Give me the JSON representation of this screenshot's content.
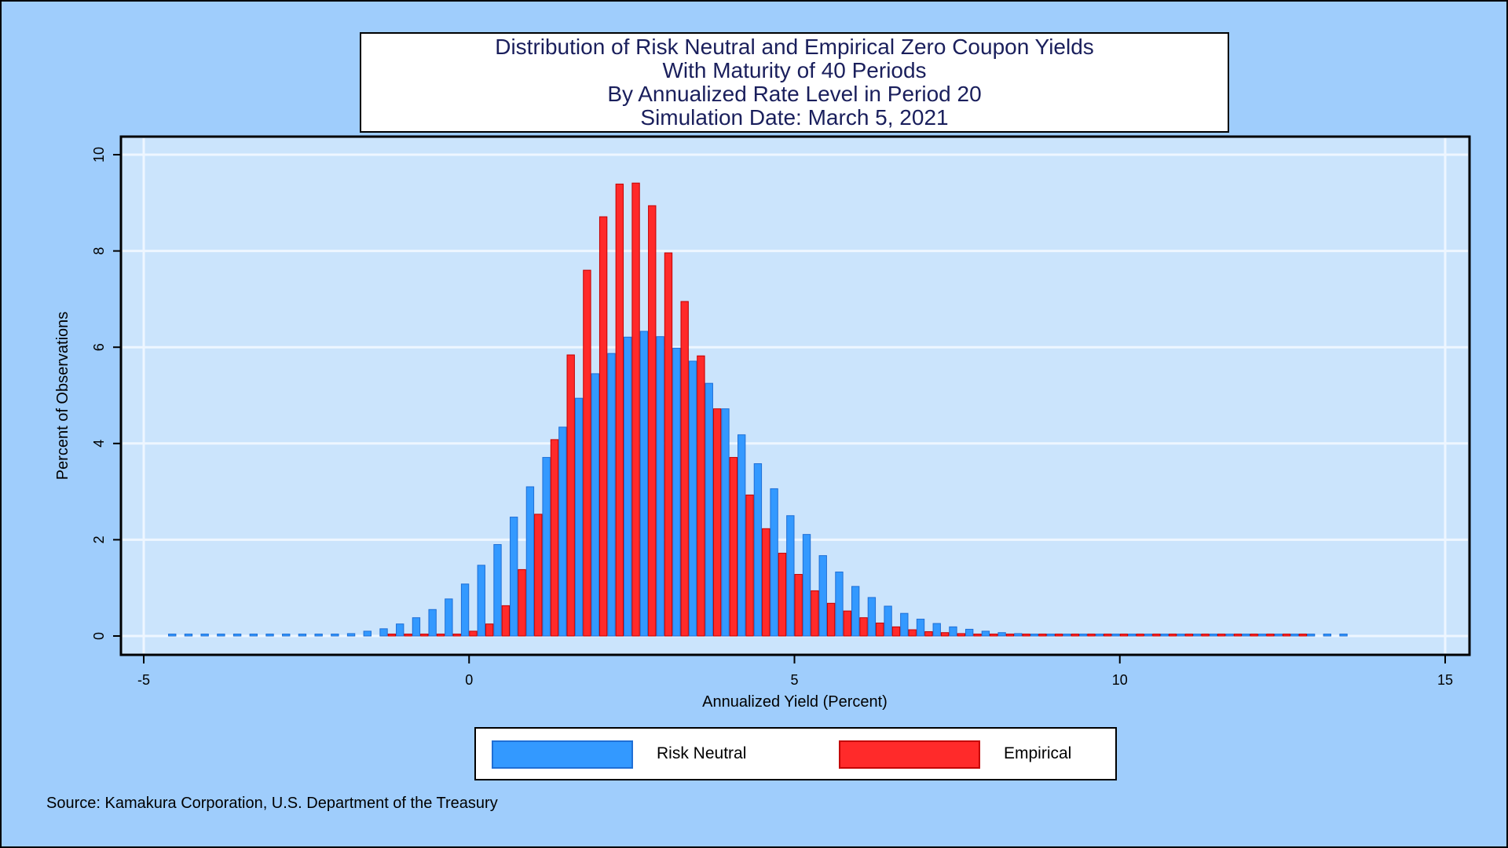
{
  "title_lines": [
    "Distribution of Risk Neutral and Empirical Zero Coupon Yields",
    "With Maturity of 40 Periods",
    "By Annualized Rate Level in Period 20",
    "Simulation Date: March 5, 2021"
  ],
  "source": "Source: Kamakura Corporation, U.S. Department of the Treasury",
  "colors": {
    "background": "#9fcdfc",
    "plot_area": "#cbe4fc",
    "grid": "#eef6ff",
    "risk_neutral_fill": "#3399ff",
    "risk_neutral_edge": "#1f6fd6",
    "empirical_fill": "#ff2a2a",
    "empirical_edge": "#c40000",
    "title_text": "#1a1f5c"
  },
  "legend": [
    {
      "label": "Risk Neutral",
      "color_key": "risk_neutral"
    },
    {
      "label": "Empirical",
      "color_key": "empirical"
    }
  ],
  "chart_data": {
    "type": "bar",
    "title": "Distribution of Risk Neutral and Empirical Zero Coupon Yields With Maturity of 40 Periods By Annualized Rate Level in Period 20 Simulation Date: March 5, 2021",
    "xlabel": "Annualized Yield (Percent)",
    "ylabel": "Percent of Observations",
    "xlim": [
      -5,
      15
    ],
    "ylim": [
      0,
      10
    ],
    "xticks": [
      -5,
      0,
      5,
      10,
      15
    ],
    "yticks": [
      0,
      2,
      4,
      6,
      8,
      10
    ],
    "grid": true,
    "legend_position": "bottom",
    "bin_width": 0.25,
    "series": [
      {
        "name": "Risk Neutral",
        "points": [
          [
            -4.5,
            0.02
          ],
          [
            -4.25,
            0.02
          ],
          [
            -4.0,
            0.02
          ],
          [
            -3.75,
            0.02
          ],
          [
            -3.5,
            0.02
          ],
          [
            -3.25,
            0.02
          ],
          [
            -3.0,
            0.02
          ],
          [
            -2.75,
            0.02
          ],
          [
            -2.5,
            0.02
          ],
          [
            -2.25,
            0.02
          ],
          [
            -2.0,
            0.03
          ],
          [
            -1.75,
            0.05
          ],
          [
            -1.5,
            0.1
          ],
          [
            -1.25,
            0.15
          ],
          [
            -1.0,
            0.25
          ],
          [
            -0.75,
            0.38
          ],
          [
            -0.5,
            0.55
          ],
          [
            -0.25,
            0.77
          ],
          [
            0.0,
            1.08
          ],
          [
            0.25,
            1.47
          ],
          [
            0.5,
            1.9
          ],
          [
            0.75,
            2.47
          ],
          [
            1.0,
            3.1
          ],
          [
            1.25,
            3.71
          ],
          [
            1.5,
            4.34
          ],
          [
            1.75,
            4.94
          ],
          [
            2.0,
            5.45
          ],
          [
            2.25,
            5.87
          ],
          [
            2.5,
            6.21
          ],
          [
            2.75,
            6.33
          ],
          [
            3.0,
            6.22
          ],
          [
            3.25,
            5.98
          ],
          [
            3.5,
            5.71
          ],
          [
            3.75,
            5.25
          ],
          [
            4.0,
            4.72
          ],
          [
            4.25,
            4.18
          ],
          [
            4.5,
            3.58
          ],
          [
            4.75,
            3.06
          ],
          [
            5.0,
            2.5
          ],
          [
            5.25,
            2.11
          ],
          [
            5.5,
            1.67
          ],
          [
            5.75,
            1.33
          ],
          [
            6.0,
            1.03
          ],
          [
            6.25,
            0.8
          ],
          [
            6.5,
            0.62
          ],
          [
            6.75,
            0.47
          ],
          [
            7.0,
            0.35
          ],
          [
            7.25,
            0.26
          ],
          [
            7.5,
            0.19
          ],
          [
            7.75,
            0.14
          ],
          [
            8.0,
            0.1
          ],
          [
            8.25,
            0.07
          ],
          [
            8.5,
            0.05
          ],
          [
            8.75,
            0.04
          ],
          [
            9.0,
            0.03
          ],
          [
            9.25,
            0.03
          ],
          [
            9.5,
            0.02
          ],
          [
            9.75,
            0.02
          ],
          [
            10.0,
            0.02
          ],
          [
            10.25,
            0.02
          ],
          [
            10.5,
            0.02
          ],
          [
            10.75,
            0.02
          ],
          [
            11.0,
            0.02
          ],
          [
            11.25,
            0.02
          ],
          [
            11.5,
            0.02
          ],
          [
            11.75,
            0.02
          ],
          [
            12.0,
            0.02
          ],
          [
            12.25,
            0.02
          ],
          [
            12.5,
            0.02
          ],
          [
            12.75,
            0.02
          ],
          [
            13.0,
            0.02
          ],
          [
            13.25,
            0.02
          ],
          [
            13.5,
            0.02
          ]
        ]
      },
      {
        "name": "Empirical",
        "points": [
          [
            -1.25,
            0.02
          ],
          [
            -1.0,
            0.02
          ],
          [
            -0.75,
            0.02
          ],
          [
            -0.5,
            0.02
          ],
          [
            -0.25,
            0.03
          ],
          [
            0.0,
            0.1
          ],
          [
            0.25,
            0.25
          ],
          [
            0.5,
            0.63
          ],
          [
            0.75,
            1.38
          ],
          [
            1.0,
            2.53
          ],
          [
            1.25,
            4.08
          ],
          [
            1.5,
            5.84
          ],
          [
            1.75,
            7.6
          ],
          [
            2.0,
            8.71
          ],
          [
            2.25,
            9.39
          ],
          [
            2.5,
            9.41
          ],
          [
            2.75,
            8.94
          ],
          [
            3.0,
            7.96
          ],
          [
            3.25,
            6.95
          ],
          [
            3.5,
            5.82
          ],
          [
            3.75,
            4.72
          ],
          [
            4.0,
            3.71
          ],
          [
            4.25,
            2.93
          ],
          [
            4.5,
            2.23
          ],
          [
            4.75,
            1.72
          ],
          [
            5.0,
            1.28
          ],
          [
            5.25,
            0.94
          ],
          [
            5.5,
            0.68
          ],
          [
            5.75,
            0.52
          ],
          [
            6.0,
            0.38
          ],
          [
            6.25,
            0.27
          ],
          [
            6.5,
            0.19
          ],
          [
            6.75,
            0.13
          ],
          [
            7.0,
            0.09
          ],
          [
            7.25,
            0.07
          ],
          [
            7.5,
            0.05
          ],
          [
            7.75,
            0.04
          ],
          [
            8.0,
            0.03
          ],
          [
            8.25,
            0.03
          ],
          [
            8.5,
            0.02
          ],
          [
            8.75,
            0.02
          ],
          [
            9.0,
            0.02
          ],
          [
            9.25,
            0.02
          ],
          [
            9.5,
            0.02
          ],
          [
            9.75,
            0.02
          ],
          [
            10.0,
            0.02
          ],
          [
            10.25,
            0.02
          ],
          [
            10.5,
            0.02
          ],
          [
            10.75,
            0.02
          ],
          [
            11.0,
            0.02
          ],
          [
            11.25,
            0.02
          ],
          [
            11.5,
            0.02
          ],
          [
            11.75,
            0.02
          ],
          [
            12.0,
            0.02
          ],
          [
            12.25,
            0.02
          ],
          [
            12.5,
            0.02
          ],
          [
            12.75,
            0.02
          ]
        ]
      }
    ]
  }
}
